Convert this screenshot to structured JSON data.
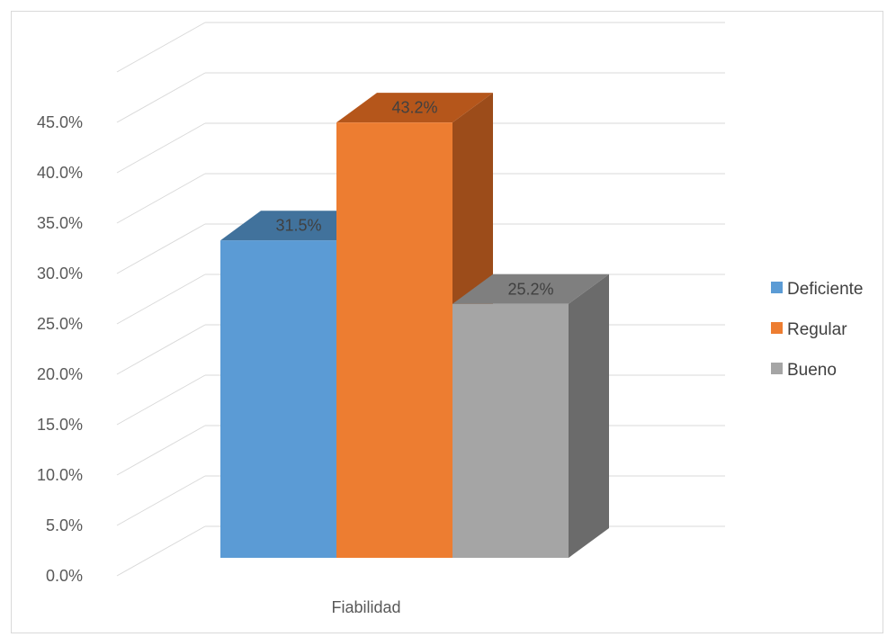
{
  "chart_data": {
    "type": "bar",
    "categories": [
      "Fiabilidad"
    ],
    "series": [
      {
        "name": "Deficiente",
        "values": [
          31.5
        ],
        "color": "#5b9bd5",
        "side": "#44739f",
        "top": "#41729c"
      },
      {
        "name": "Regular",
        "values": [
          43.2
        ],
        "color": "#ed7d31",
        "side": "#9c4c1a",
        "top": "#b5561b"
      },
      {
        "name": "Bueno",
        "values": [
          25.2
        ],
        "color": "#a5a5a5",
        "side": "#6b6b6b",
        "top": "#7f7f7f"
      }
    ],
    "data_labels": [
      "31.5%",
      "43.2%",
      "25.2%"
    ],
    "yticks": [
      "0.0%",
      "5.0%",
      "10.0%",
      "15.0%",
      "20.0%",
      "25.0%",
      "30.0%",
      "35.0%",
      "40.0%",
      "45.0%"
    ],
    "ylim": [
      0,
      50
    ],
    "grid": true,
    "legend": "right",
    "style": "3d-column"
  }
}
